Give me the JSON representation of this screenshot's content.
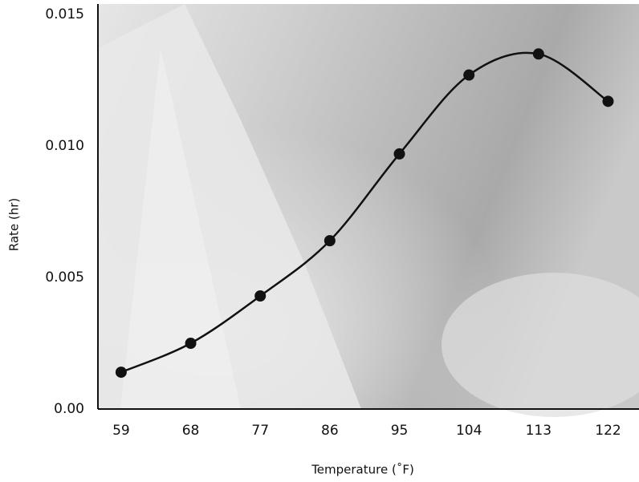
{
  "chart_data": {
    "type": "line",
    "x_label": "Temperature (˚F)",
    "y_label": "Rate (hr)",
    "x": [
      59,
      68,
      77,
      86,
      95,
      104,
      113,
      122
    ],
    "series": [
      {
        "color": "#111111",
        "values": [
          0.0014,
          0.0025,
          0.0043,
          0.0064,
          0.0097,
          0.0127,
          0.0135,
          0.0117
        ]
      }
    ],
    "xlim": [
      56,
      126
    ],
    "xticks": [
      59,
      68,
      77,
      86,
      95,
      104,
      113,
      122
    ],
    "ylim": [
      0,
      0.0154
    ],
    "yticks": [
      {
        "value": 0,
        "label": "0.00"
      },
      {
        "value": 0.005,
        "label": "0.005"
      },
      {
        "value": 0.01,
        "label": "0.010"
      },
      {
        "value": 0.015,
        "label": "0.015"
      }
    ],
    "smooth": true,
    "markers": true,
    "grid": false
  }
}
